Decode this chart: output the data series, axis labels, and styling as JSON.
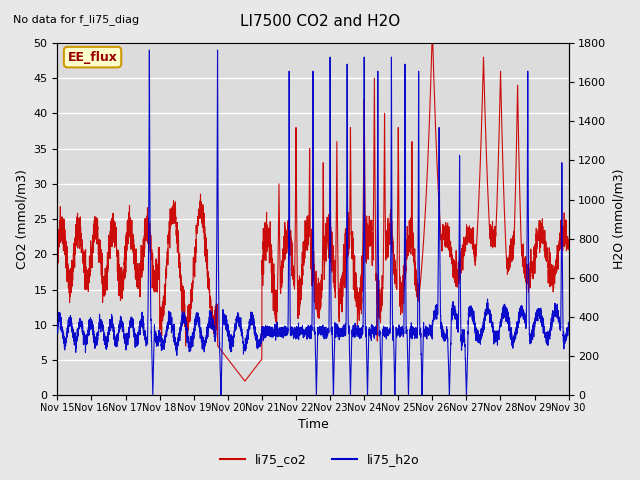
{
  "title": "LI7500 CO2 and H2O",
  "subtitle": "No data for f_li75_diag",
  "xlabel": "Time",
  "ylabel_left": "CO2 (mmol/m3)",
  "ylabel_right": "H2O (mmol/m3)",
  "ylim_left": [
    0,
    50
  ],
  "ylim_right": [
    0,
    1800
  ],
  "legend_entries": [
    "li75_co2",
    "li75_h2o"
  ],
  "co2_color": "#cc0000",
  "h2o_color": "#0000cc",
  "box_label": "EE_flux",
  "box_facecolor": "#ffffcc",
  "box_edgecolor": "#cc9900",
  "box_textcolor": "#990000",
  "background_color": "#e8e8e8",
  "plot_bg_color": "#dcdcdc",
  "grid_color": "#ffffff",
  "x_tick_labels": [
    "Nov 15",
    "Nov 16",
    "Nov 17",
    "Nov 18",
    "Nov 19",
    "Nov 20",
    "Nov 21",
    "Nov 22",
    "Nov 23",
    "Nov 24",
    "Nov 25",
    "Nov 26",
    "Nov 27",
    "Nov 28",
    "Nov 29",
    "Nov 30"
  ],
  "yticks_left": [
    0,
    5,
    10,
    15,
    20,
    25,
    30,
    35,
    40,
    45,
    50
  ],
  "yticks_right": [
    0,
    200,
    400,
    600,
    800,
    1000,
    1200,
    1400,
    1600,
    1800
  ]
}
